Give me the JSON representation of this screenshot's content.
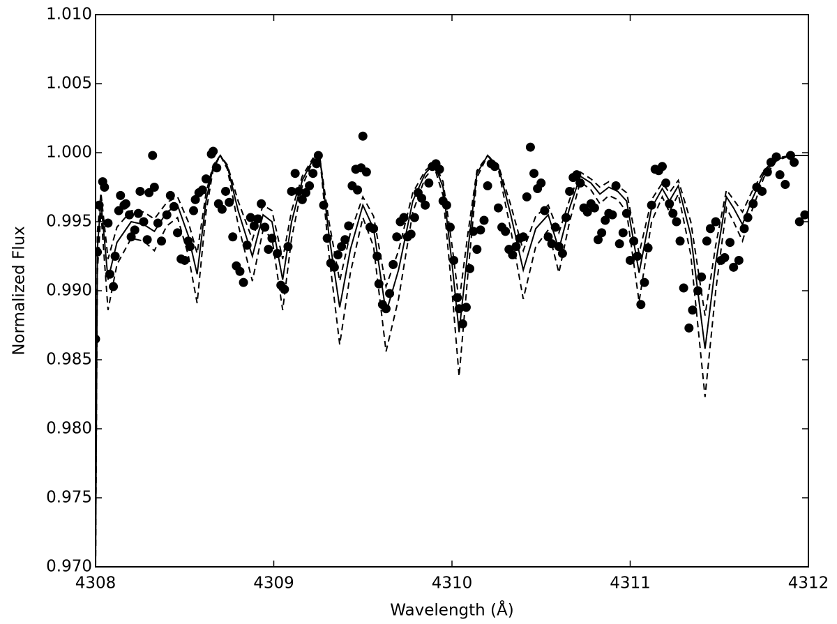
{
  "chart_data": {
    "type": "scatter",
    "x_label": "Wavelength (Å)",
    "y_label": "Normalized Flux",
    "xlim": [
      4308,
      4312
    ],
    "ylim": [
      0.97,
      1.01
    ],
    "xticks": [
      4308,
      4309,
      4310,
      4311,
      4312
    ],
    "yticks": [
      {
        "value": 0.97,
        "label": "0.970"
      },
      0.975,
      {
        "value": 0.98,
        "label": "0.980"
      },
      0.985,
      {
        "value": 0.99,
        "label": "0.990"
      },
      0.995,
      {
        "value": 1.0,
        "label": "1.000"
      },
      1.005,
      {
        "value": 1.01,
        "label": "1.010"
      }
    ],
    "grid": false,
    "series": [
      {
        "type": "scatter",
        "marker": "circle",
        "color": "#000000",
        "x": [
          4308.0,
          4308.01,
          4308.02,
          4308.04,
          4308.05,
          4308.07,
          4308.08,
          4308.1,
          4308.11,
          4308.13,
          4308.14,
          4308.16,
          4308.17,
          4308.19,
          4308.2,
          4308.22,
          4308.24,
          4308.25,
          4308.27,
          4308.29,
          4308.3,
          4308.32,
          4308.33,
          4308.35,
          4308.37,
          4308.4,
          4308.42,
          4308.44,
          4308.46,
          4308.48,
          4308.5,
          4308.52,
          4308.53,
          4308.55,
          4308.56,
          4308.58,
          4308.6,
          4308.62,
          4308.65,
          4308.66,
          4308.68,
          4308.69,
          4308.71,
          4308.73,
          4308.75,
          4308.77,
          4308.79,
          4308.81,
          4308.83,
          4308.85,
          4308.87,
          4308.89,
          4308.91,
          4308.93,
          4308.95,
          4308.97,
          4308.99,
          4309.02,
          4309.04,
          4309.06,
          4309.08,
          4309.1,
          4309.12,
          4309.14,
          4309.16,
          4309.18,
          4309.2,
          4309.22,
          4309.24,
          4309.25,
          4309.28,
          4309.3,
          4309.32,
          4309.34,
          4309.36,
          4309.38,
          4309.4,
          4309.42,
          4309.44,
          4309.46,
          4309.47,
          4309.49,
          4309.5,
          4309.52,
          4309.54,
          4309.56,
          4309.58,
          4309.59,
          4309.61,
          4309.63,
          4309.65,
          4309.67,
          4309.69,
          4309.71,
          4309.73,
          4309.75,
          4309.77,
          4309.79,
          4309.81,
          4309.83,
          4309.85,
          4309.87,
          4309.89,
          4309.91,
          4309.93,
          4309.95,
          4309.97,
          4309.99,
          4310.01,
          4310.03,
          4310.04,
          4310.06,
          4310.08,
          4310.1,
          4310.12,
          4310.14,
          4310.16,
          4310.18,
          4310.2,
          4310.22,
          4310.24,
          4310.26,
          4310.28,
          4310.3,
          4310.32,
          4310.34,
          4310.36,
          4310.38,
          4310.4,
          4310.42,
          4310.44,
          4310.46,
          4310.48,
          4310.5,
          4310.52,
          4310.54,
          4310.56,
          4310.58,
          4310.6,
          4310.62,
          4310.64,
          4310.66,
          4310.68,
          4310.7,
          4310.72,
          4310.74,
          4310.76,
          4310.78,
          4310.8,
          4310.82,
          4310.84,
          4310.86,
          4310.88,
          4310.9,
          4310.92,
          4310.94,
          4310.96,
          4310.98,
          4311.0,
          4311.02,
          4311.04,
          4311.06,
          4311.08,
          4311.1,
          4311.12,
          4311.14,
          4311.16,
          4311.18,
          4311.2,
          4311.22,
          4311.24,
          4311.26,
          4311.28,
          4311.3,
          4311.33,
          4311.35,
          4311.38,
          4311.4,
          4311.43,
          4311.45,
          4311.48,
          4311.51,
          4311.53,
          4311.56,
          4311.58,
          4311.61,
          4311.64,
          4311.66,
          4311.69,
          4311.71,
          4311.74,
          4311.77,
          4311.79,
          4311.82,
          4311.84,
          4311.87,
          4311.9,
          4311.92,
          4311.95,
          4311.98
        ],
        "values": [
          0.9865,
          0.9928,
          0.9962,
          0.9979,
          0.9975,
          0.9949,
          0.9912,
          0.9903,
          0.9925,
          0.9958,
          0.9969,
          0.9962,
          0.9963,
          0.9955,
          0.9939,
          0.9944,
          0.9956,
          0.9972,
          0.995,
          0.9937,
          0.9971,
          0.9998,
          0.9975,
          0.9949,
          0.9936,
          0.9955,
          0.9969,
          0.9961,
          0.9942,
          0.9923,
          0.9922,
          0.9936,
          0.9932,
          0.9958,
          0.9966,
          0.9971,
          0.9973,
          0.9981,
          0.9999,
          1.0001,
          0.9989,
          0.9963,
          0.9959,
          0.9972,
          0.9964,
          0.9939,
          0.9918,
          0.9914,
          0.9906,
          0.9933,
          0.9953,
          0.9947,
          0.9952,
          0.9963,
          0.9946,
          0.993,
          0.9938,
          0.9927,
          0.9904,
          0.9901,
          0.9932,
          0.9972,
          0.9985,
          0.9972,
          0.9966,
          0.9971,
          0.9976,
          0.9985,
          0.9992,
          0.9998,
          0.9962,
          0.9938,
          0.992,
          0.9917,
          0.9926,
          0.9932,
          0.9937,
          0.9947,
          0.9976,
          0.9988,
          0.9973,
          0.9989,
          1.0012,
          0.9986,
          0.9946,
          0.9945,
          0.9925,
          0.9905,
          0.989,
          0.9887,
          0.9898,
          0.9919,
          0.9939,
          0.995,
          0.9953,
          0.9939,
          0.9941,
          0.9953,
          0.9971,
          0.9967,
          0.9962,
          0.9978,
          0.999,
          0.9992,
          0.9988,
          0.9965,
          0.9962,
          0.9946,
          0.9922,
          0.9895,
          0.9887,
          0.9876,
          0.9888,
          0.9916,
          0.9943,
          0.993,
          0.9944,
          0.9951,
          0.9976,
          0.9992,
          0.999,
          0.996,
          0.9946,
          0.9943,
          0.993,
          0.9926,
          0.9932,
          0.9938,
          0.9939,
          0.9968,
          1.0004,
          0.9985,
          0.9974,
          0.9978,
          0.9958,
          0.9939,
          0.9934,
          0.9946,
          0.9932,
          0.9927,
          0.9953,
          0.9972,
          0.9982,
          0.9984,
          0.9978,
          0.996,
          0.9957,
          0.9963,
          0.996,
          0.9937,
          0.9942,
          0.9951,
          0.9956,
          0.9955,
          0.9976,
          0.9934,
          0.9942,
          0.9956,
          0.9922,
          0.9936,
          0.9925,
          0.989,
          0.9906,
          0.9931,
          0.9962,
          0.9988,
          0.9987,
          0.999,
          0.9978,
          0.9963,
          0.9956,
          0.995,
          0.9936,
          0.9902,
          0.9873,
          0.9886,
          0.99,
          0.991,
          0.9936,
          0.9945,
          0.995,
          0.9922,
          0.9924,
          0.9935,
          0.9917,
          0.9922,
          0.9945,
          0.9953,
          0.9963,
          0.9975,
          0.9972,
          0.9986,
          0.9993,
          0.9997,
          0.9984,
          0.9977,
          0.9998,
          0.9993,
          0.995,
          0.9955
        ]
      },
      {
        "type": "line",
        "style": "solid",
        "color": "#000000",
        "x": [
          4308.0,
          4308.01,
          4308.03,
          4308.07,
          4308.12,
          4308.2,
          4308.27,
          4308.33,
          4308.4,
          4308.46,
          4308.52,
          4308.57,
          4308.62,
          4308.66,
          4308.7,
          4308.74,
          4308.8,
          4308.88,
          4308.94,
          4308.99,
          4309.05,
          4309.1,
          4309.16,
          4309.22,
          4309.26,
          4309.31,
          4309.37,
          4309.43,
          4309.5,
          4309.56,
          4309.63,
          4309.7,
          4309.78,
          4309.85,
          4309.9,
          4309.95,
          4310.0,
          4310.04,
          4310.09,
          4310.14,
          4310.2,
          4310.26,
          4310.33,
          4310.4,
          4310.47,
          4310.54,
          4310.6,
          4310.66,
          4310.72,
          4310.78,
          4310.83,
          4310.88,
          4310.93,
          4310.98,
          4311.05,
          4311.12,
          4311.18,
          4311.22,
          4311.27,
          4311.34,
          4311.42,
          4311.48,
          4311.54,
          4311.58,
          4311.63,
          4311.68,
          4311.75,
          4311.82,
          4311.9,
          4312.0
        ],
        "values": [
          0.97,
          0.993,
          0.9965,
          0.9908,
          0.9935,
          0.995,
          0.9948,
          0.9943,
          0.9957,
          0.9962,
          0.994,
          0.9912,
          0.9965,
          0.999,
          0.9998,
          0.999,
          0.9958,
          0.9925,
          0.9955,
          0.995,
          0.9908,
          0.995,
          0.998,
          0.9995,
          0.9995,
          0.994,
          0.9888,
          0.993,
          0.9962,
          0.9945,
          0.9884,
          0.9915,
          0.9965,
          0.9985,
          0.9992,
          0.9975,
          0.992,
          0.987,
          0.993,
          0.9985,
          0.9998,
          0.999,
          0.9955,
          0.9915,
          0.9945,
          0.9955,
          0.993,
          0.996,
          0.9983,
          0.9978,
          0.997,
          0.9975,
          0.9972,
          0.9965,
          0.9913,
          0.996,
          0.9974,
          0.9965,
          0.9976,
          0.994,
          0.9858,
          0.992,
          0.9968,
          0.996,
          0.9948,
          0.9965,
          0.9985,
          0.9995,
          0.9998,
          0.9998
        ]
      },
      {
        "type": "line",
        "style": "dashed",
        "color": "#000000",
        "x": [
          4308.0,
          4308.01,
          4308.03,
          4308.07,
          4308.12,
          4308.2,
          4308.27,
          4308.33,
          4308.4,
          4308.46,
          4308.52,
          4308.57,
          4308.62,
          4308.66,
          4308.7,
          4308.74,
          4308.8,
          4308.88,
          4308.94,
          4308.99,
          4309.05,
          4309.1,
          4309.16,
          4309.22,
          4309.26,
          4309.31,
          4309.37,
          4309.43,
          4309.5,
          4309.56,
          4309.63,
          4309.7,
          4309.78,
          4309.85,
          4309.9,
          4309.95,
          4310.0,
          4310.04,
          4310.09,
          4310.14,
          4310.2,
          4310.26,
          4310.33,
          4310.4,
          4310.47,
          4310.54,
          4310.6,
          4310.66,
          4310.72,
          4310.78,
          4310.83,
          4310.88,
          4310.93,
          4310.98,
          4311.05,
          4311.12,
          4311.18,
          4311.22,
          4311.27,
          4311.34,
          4311.42,
          4311.48,
          4311.54,
          4311.58,
          4311.63,
          4311.68,
          4311.75,
          4311.82,
          4311.9,
          4312.0
        ],
        "values": [
          0.97,
          0.9913,
          0.9957,
          0.9886,
          0.9919,
          0.9938,
          0.9936,
          0.9929,
          0.9947,
          0.9953,
          0.9926,
          0.9891,
          0.9957,
          0.9988,
          0.9998,
          0.9988,
          0.9948,
          0.9907,
          0.9944,
          0.9938,
          0.9886,
          0.9938,
          0.9976,
          0.9994,
          0.9995,
          0.9926,
          0.9861,
          0.9913,
          0.9953,
          0.9932,
          0.9856,
          0.9894,
          0.9957,
          0.9982,
          0.999,
          0.9969,
          0.99,
          0.9838,
          0.9913,
          0.9982,
          0.9998,
          0.9988,
          0.9944,
          0.9894,
          0.9932,
          0.9944,
          0.9913,
          0.995,
          0.9979,
          0.9973,
          0.9963,
          0.9969,
          0.9966,
          0.9957,
          0.9892,
          0.995,
          0.9968,
          0.9957,
          0.997,
          0.9926,
          0.9823,
          0.99,
          0.996,
          0.995,
          0.9936,
          0.9957,
          0.9982,
          0.9994,
          0.9998,
          0.9998
        ]
      },
      {
        "type": "line",
        "style": "dashed",
        "color": "#000000",
        "x": [
          4308.0,
          4308.01,
          4308.03,
          4308.07,
          4308.12,
          4308.2,
          4308.27,
          4308.33,
          4308.4,
          4308.46,
          4308.52,
          4308.57,
          4308.62,
          4308.66,
          4308.7,
          4308.74,
          4308.8,
          4308.88,
          4308.94,
          4308.99,
          4309.05,
          4309.1,
          4309.16,
          4309.22,
          4309.26,
          4309.31,
          4309.37,
          4309.43,
          4309.5,
          4309.56,
          4309.63,
          4309.7,
          4309.78,
          4309.85,
          4309.9,
          4309.95,
          4310.0,
          4310.04,
          4310.09,
          4310.14,
          4310.2,
          4310.26,
          4310.33,
          4310.4,
          4310.47,
          4310.54,
          4310.6,
          4310.66,
          4310.72,
          4310.78,
          4310.83,
          4310.88,
          4310.93,
          4310.98,
          4311.05,
          4311.12,
          4311.18,
          4311.22,
          4311.27,
          4311.34,
          4311.42,
          4311.48,
          4311.54,
          4311.58,
          4311.63,
          4311.68,
          4311.75,
          4311.82,
          4311.9,
          4312.0
        ],
        "values": [
          0.97,
          0.9942,
          0.9971,
          0.9923,
          0.9946,
          0.9958,
          0.9957,
          0.9952,
          0.9964,
          0.9968,
          0.995,
          0.9927,
          0.9971,
          0.9991,
          0.9998,
          0.9991,
          0.9965,
          0.9937,
          0.9962,
          0.9958,
          0.9923,
          0.9958,
          0.9983,
          0.9996,
          0.9995,
          0.995,
          0.9907,
          0.9942,
          0.9968,
          0.9954,
          0.9903,
          0.9929,
          0.9971,
          0.9987,
          0.9993,
          0.9979,
          0.9933,
          0.9892,
          0.9942,
          0.9987,
          0.9998,
          0.9991,
          0.9962,
          0.9929,
          0.9954,
          0.9962,
          0.9942,
          0.9966,
          0.9986,
          0.9981,
          0.9975,
          0.9979,
          0.9976,
          0.9971,
          0.9927,
          0.9966,
          0.9978,
          0.9971,
          0.998,
          0.995,
          0.9882,
          0.9933,
          0.9973,
          0.9966,
          0.9957,
          0.9971,
          0.9987,
          0.9996,
          0.9998,
          0.9998
        ]
      }
    ]
  }
}
